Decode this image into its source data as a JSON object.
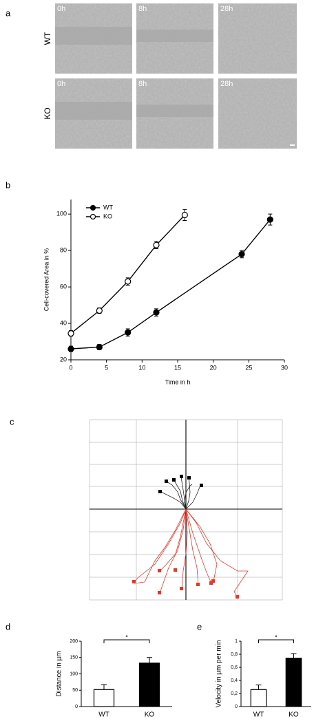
{
  "panel_labels": [
    "a",
    "b",
    "c",
    "d",
    "e"
  ],
  "micrographs": {
    "times": [
      "0h",
      "8h",
      "28h"
    ],
    "rows": [
      "WT",
      "KO"
    ]
  },
  "chart_data": [
    {
      "type": "line",
      "xlabel": "Time in h",
      "ylabel": "Cell-covered Area in %",
      "xlim": [
        0,
        30
      ],
      "xticks": [
        0,
        5,
        10,
        15,
        20,
        25,
        30
      ],
      "ylim": [
        20,
        108
      ],
      "yticks": [
        20,
        40,
        60,
        80,
        100
      ],
      "grid": false,
      "legend": "upper left",
      "series": [
        {
          "name": "WT",
          "color": "#000000",
          "marker_fill": "#000000",
          "x": [
            0,
            4,
            8,
            12,
            24,
            28
          ],
          "values": [
            26,
            27,
            35,
            46,
            78,
            97
          ],
          "errors": [
            1.5,
            1.5,
            2,
            2,
            2,
            3
          ]
        },
        {
          "name": "KO",
          "color": "#000000",
          "marker_fill": "#ffffff",
          "x": [
            0,
            4,
            8,
            12,
            16
          ],
          "values": [
            34.5,
            47,
            63,
            83,
            99.5
          ],
          "errors": [
            1.5,
            1.5,
            2,
            2,
            3
          ]
        }
      ]
    },
    {
      "type": "bar",
      "ylabel": "Distance in µm",
      "categories": [
        "WT",
        "KO"
      ],
      "values": [
        52,
        133
      ],
      "errors": [
        15,
        17
      ],
      "colors": [
        "#ffffff",
        "#000000"
      ],
      "ylim": [
        0,
        200
      ],
      "yticks": [
        0,
        50,
        100,
        150,
        200
      ],
      "significance": "*"
    },
    {
      "type": "bar",
      "ylabel": "Velocity in µm per min",
      "categories": [
        "WT",
        "KO"
      ],
      "values": [
        0.26,
        0.74
      ],
      "errors": [
        0.07,
        0.07
      ],
      "colors": [
        "#ffffff",
        "#000000"
      ],
      "ylim": [
        0,
        1
      ],
      "yticks": [
        0,
        {
          "value": 0.2,
          "label": "0,2"
        },
        {
          "value": 0.4,
          "label": "0,4"
        },
        {
          "value": 0.6,
          "label": "0,6"
        },
        {
          "value": 0.8,
          "label": "0,8"
        },
        1
      ],
      "significance": "*"
    }
  ]
}
